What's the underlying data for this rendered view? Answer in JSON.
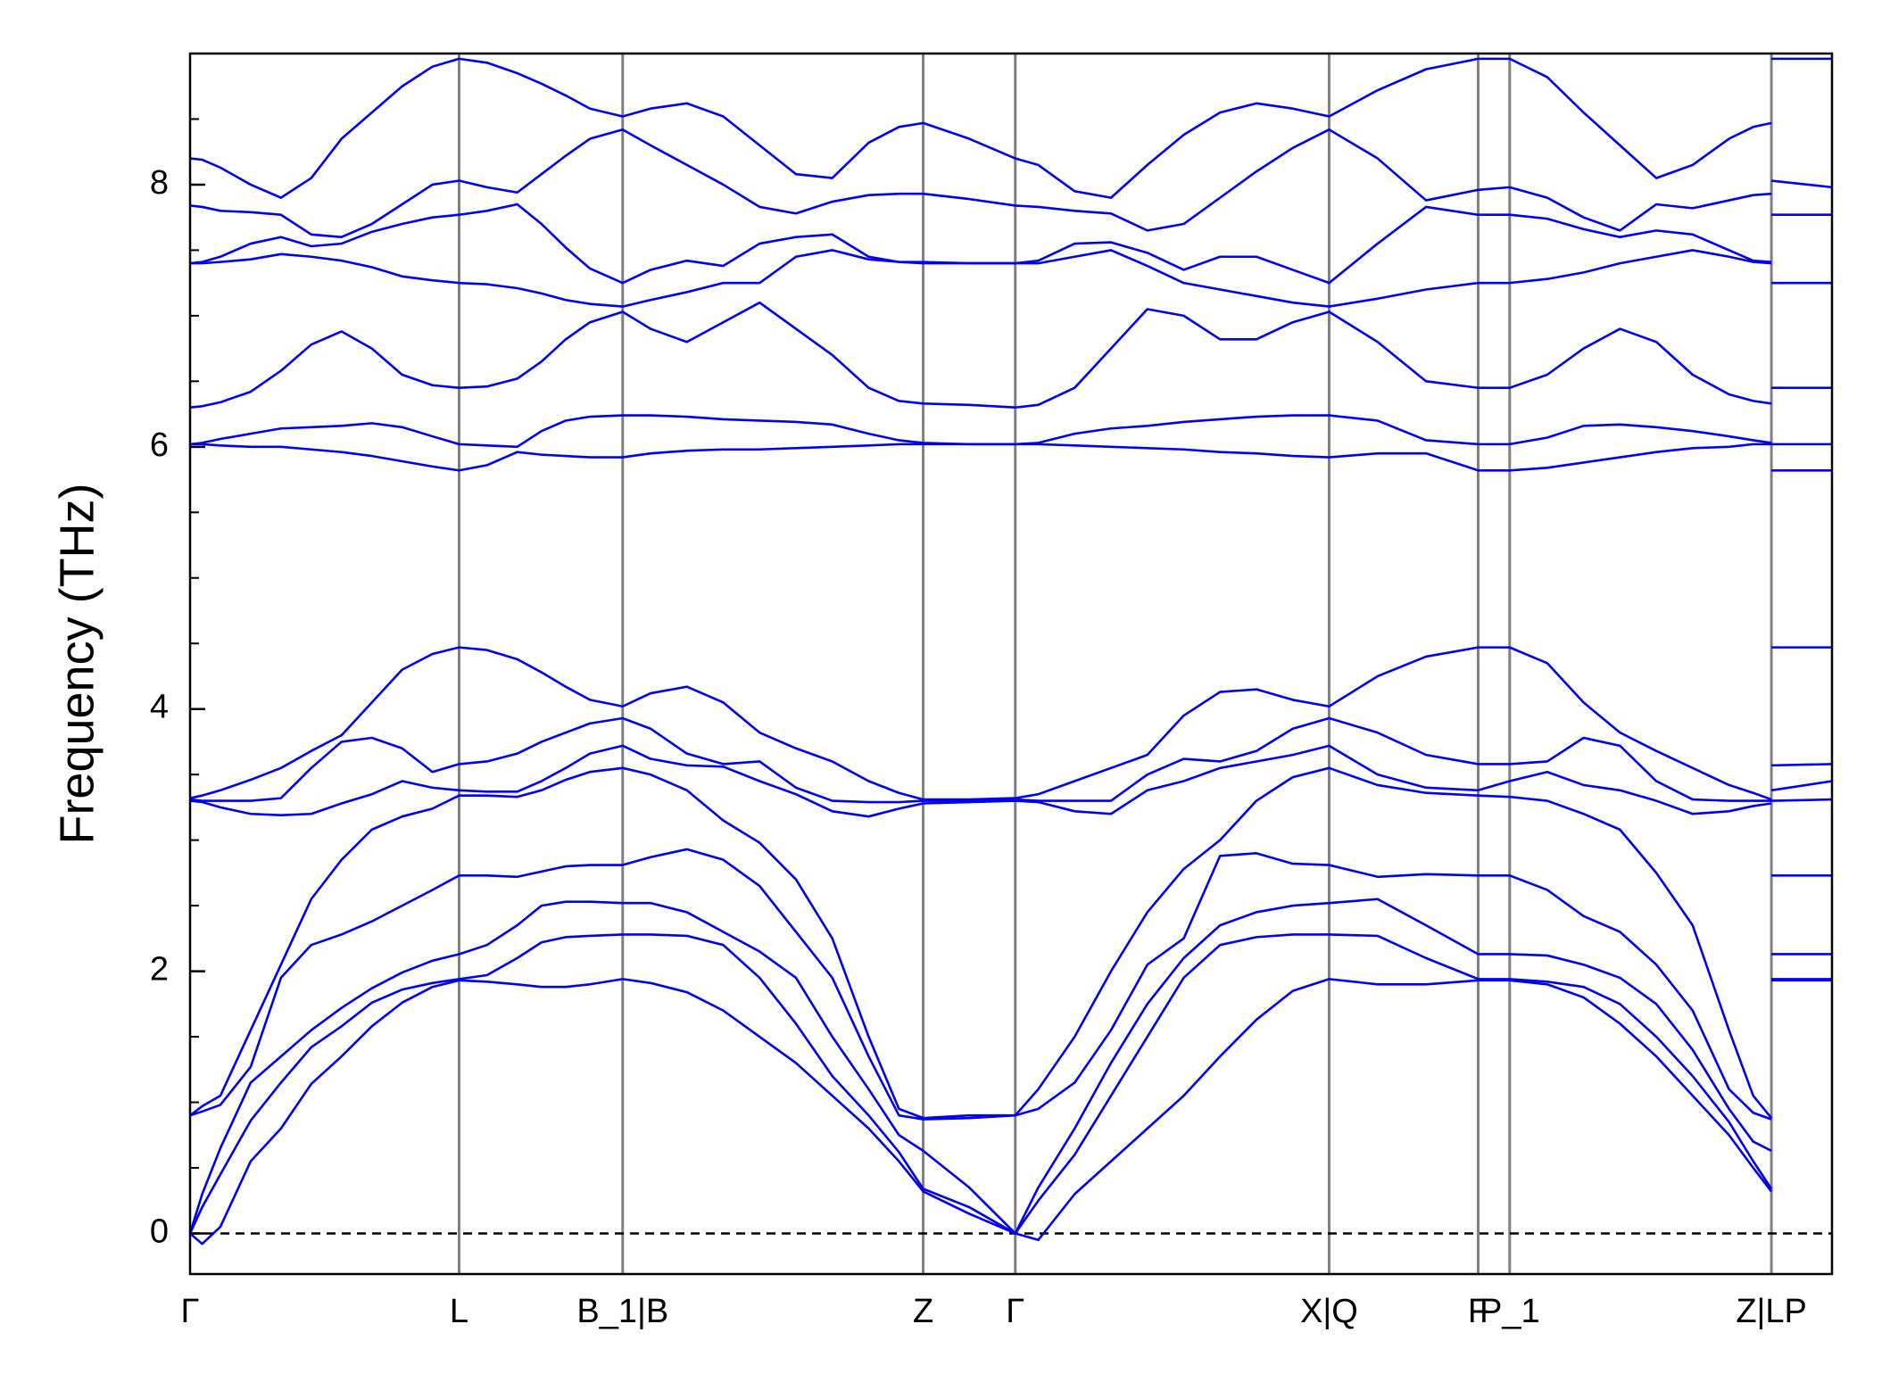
{
  "chart_data": {
    "type": "line",
    "y_label": "Frequency (THz)",
    "xlim": [
      0,
      1355
    ],
    "xticks": [
      {
        "value": 0,
        "label": "Γ"
      },
      {
        "value": 222,
        "label": "L"
      },
      {
        "value": 357,
        "label": "B_1|B"
      },
      {
        "value": 605,
        "label": "Z"
      },
      {
        "value": 681,
        "label": "Γ"
      },
      {
        "value": 940,
        "label": "X|Q"
      },
      {
        "value": 1063,
        "label": "F"
      },
      {
        "value": 1089,
        "label": "P_1"
      },
      {
        "value": 1305,
        "label": "Z|LP"
      }
    ],
    "xgrid": true,
    "xgrid_color": "#808080",
    "ylim": [
      -0.31,
      9.0
    ],
    "yticks": [
      0,
      2,
      4,
      6,
      8
    ],
    "minor_yticks": [
      0.5,
      1,
      1.5,
      2.5,
      3,
      3.5,
      4.5,
      5,
      5.5,
      6.5,
      7,
      7.5,
      8.5
    ],
    "reference_line": {
      "y": 0,
      "style": "dashed",
      "color": "#000000"
    },
    "x": [
      0,
      10,
      25,
      50,
      75,
      100,
      125,
      150,
      175,
      200,
      222,
      245,
      270,
      290,
      310,
      330,
      357,
      380,
      410,
      440,
      470,
      500,
      530,
      560,
      585,
      605,
      643,
      681,
      700,
      730,
      760,
      790,
      820,
      850,
      880,
      910,
      940,
      980,
      1020,
      1063,
      1089,
      1120,
      1150,
      1180,
      1210,
      1240,
      1270,
      1290,
      1305,
      1305,
      1305,
      1355
    ],
    "series": [
      {
        "color": "#0000ee",
        "values": [
          0,
          -0.08,
          0.05,
          0.55,
          0.8,
          1.14,
          1.35,
          1.58,
          1.76,
          1.88,
          1.93,
          1.92,
          1.9,
          1.88,
          1.88,
          1.9,
          1.94,
          1.91,
          1.84,
          1.7,
          1.5,
          1.3,
          1.05,
          0.8,
          0.55,
          0.32,
          0.15,
          0,
          -0.05,
          0.3,
          0.55,
          0.8,
          1.05,
          1.35,
          1.63,
          1.85,
          1.94,
          1.9,
          1.9,
          1.93,
          1.93,
          1.9,
          1.8,
          1.6,
          1.35,
          1.05,
          0.75,
          0.5,
          0.32,
          null,
          1.93,
          1.93
        ]
      },
      {
        "color": "#0000ee",
        "values": [
          0,
          0.2,
          0.45,
          0.86,
          1.15,
          1.42,
          1.58,
          1.76,
          1.86,
          1.91,
          1.94,
          1.97,
          2.1,
          2.22,
          2.26,
          2.27,
          2.28,
          2.28,
          2.27,
          2.2,
          1.95,
          1.6,
          1.2,
          0.9,
          0.62,
          0.34,
          0.2,
          0,
          0.25,
          0.6,
          1.05,
          1.5,
          1.95,
          2.2,
          2.26,
          2.28,
          2.28,
          2.27,
          2.1,
          1.94,
          1.94,
          1.92,
          1.88,
          1.75,
          1.5,
          1.2,
          0.85,
          0.55,
          0.34,
          null,
          1.94,
          1.94
        ]
      },
      {
        "color": "#0000ee",
        "values": [
          0,
          0.3,
          0.65,
          1.15,
          1.35,
          1.55,
          1.72,
          1.87,
          1.99,
          2.08,
          2.13,
          2.2,
          2.35,
          2.5,
          2.53,
          2.53,
          2.52,
          2.52,
          2.45,
          2.3,
          2.15,
          1.95,
          1.5,
          1.1,
          0.75,
          0.63,
          0.35,
          0,
          0.35,
          0.8,
          1.3,
          1.75,
          2.1,
          2.35,
          2.45,
          2.5,
          2.52,
          2.55,
          2.35,
          2.13,
          2.13,
          2.12,
          2.05,
          1.95,
          1.75,
          1.4,
          0.95,
          0.7,
          0.63,
          null,
          2.13,
          2.13
        ]
      },
      {
        "color": "#0000ee",
        "values": [
          0.9,
          0.93,
          0.98,
          1.27,
          1.95,
          2.2,
          2.28,
          2.38,
          2.5,
          2.62,
          2.73,
          2.73,
          2.72,
          2.76,
          2.8,
          2.81,
          2.81,
          2.87,
          2.93,
          2.85,
          2.65,
          2.3,
          1.95,
          1.35,
          0.9,
          0.87,
          0.88,
          0.9,
          0.95,
          1.15,
          1.55,
          2.05,
          2.25,
          2.88,
          2.9,
          2.82,
          2.81,
          2.72,
          2.74,
          2.73,
          2.73,
          2.62,
          2.42,
          2.3,
          2.05,
          1.7,
          1.1,
          0.92,
          0.87,
          null,
          2.73,
          2.73
        ]
      },
      {
        "color": "#0000ee",
        "values": [
          0.9,
          0.97,
          1.05,
          1.55,
          2.05,
          2.55,
          2.85,
          3.08,
          3.18,
          3.24,
          3.34,
          3.34,
          3.33,
          3.38,
          3.46,
          3.52,
          3.55,
          3.5,
          3.38,
          3.15,
          2.98,
          2.7,
          2.25,
          1.5,
          0.95,
          0.88,
          0.9,
          0.9,
          1.1,
          1.5,
          2.0,
          2.45,
          2.78,
          3.0,
          3.3,
          3.48,
          3.55,
          3.42,
          3.36,
          3.34,
          3.33,
          3.3,
          3.2,
          3.08,
          2.75,
          2.35,
          1.55,
          1.05,
          0.88,
          null,
          3.3,
          3.31
        ]
      },
      {
        "color": "#0000ee",
        "values": [
          3.3,
          3.29,
          3.25,
          3.2,
          3.19,
          3.2,
          3.28,
          3.35,
          3.45,
          3.4,
          3.38,
          3.37,
          3.37,
          3.45,
          3.55,
          3.66,
          3.72,
          3.62,
          3.57,
          3.56,
          3.45,
          3.35,
          3.22,
          3.18,
          3.24,
          3.28,
          3.29,
          3.3,
          3.29,
          3.22,
          3.2,
          3.38,
          3.45,
          3.55,
          3.6,
          3.65,
          3.72,
          3.5,
          3.4,
          3.38,
          3.45,
          3.52,
          3.42,
          3.38,
          3.3,
          3.2,
          3.22,
          3.26,
          3.28,
          null,
          3.38,
          3.45
        ]
      },
      {
        "color": "#0000ee",
        "values": [
          3.31,
          3.3,
          3.3,
          3.3,
          3.32,
          3.55,
          3.75,
          3.78,
          3.7,
          3.52,
          3.58,
          3.6,
          3.66,
          3.75,
          3.82,
          3.89,
          3.93,
          3.85,
          3.66,
          3.58,
          3.6,
          3.4,
          3.3,
          3.29,
          3.29,
          3.3,
          3.3,
          3.31,
          3.3,
          3.3,
          3.3,
          3.5,
          3.62,
          3.6,
          3.68,
          3.85,
          3.93,
          3.82,
          3.65,
          3.58,
          3.58,
          3.6,
          3.78,
          3.72,
          3.45,
          3.31,
          3.3,
          3.3,
          3.3,
          null,
          3.57,
          3.58
        ]
      },
      {
        "color": "#0000ee",
        "values": [
          3.32,
          3.34,
          3.38,
          3.46,
          3.55,
          3.68,
          3.8,
          4.05,
          4.3,
          4.42,
          4.47,
          4.45,
          4.38,
          4.28,
          4.17,
          4.07,
          4.02,
          4.12,
          4.17,
          4.05,
          3.82,
          3.7,
          3.6,
          3.45,
          3.36,
          3.31,
          3.31,
          3.32,
          3.35,
          3.45,
          3.55,
          3.65,
          3.95,
          4.13,
          4.15,
          4.07,
          4.02,
          4.25,
          4.4,
          4.47,
          4.47,
          4.35,
          4.05,
          3.82,
          3.68,
          3.55,
          3.42,
          3.36,
          3.31,
          null,
          4.47,
          4.47
        ]
      },
      {
        "color": "#0000ee",
        "values": [
          6.02,
          6.02,
          6.01,
          6.0,
          6.0,
          5.98,
          5.96,
          5.93,
          5.89,
          5.85,
          5.82,
          5.86,
          5.96,
          5.94,
          5.93,
          5.92,
          5.92,
          5.95,
          5.97,
          5.98,
          5.98,
          5.99,
          6.0,
          6.01,
          6.02,
          6.02,
          6.02,
          6.02,
          6.02,
          6.01,
          6.0,
          5.99,
          5.98,
          5.96,
          5.95,
          5.93,
          5.92,
          5.95,
          5.95,
          5.82,
          5.82,
          5.84,
          5.88,
          5.92,
          5.96,
          5.99,
          6.0,
          6.02,
          6.02,
          null,
          5.82,
          5.82
        ]
      },
      {
        "color": "#0000ee",
        "values": [
          6.02,
          6.03,
          6.06,
          6.1,
          6.14,
          6.15,
          6.16,
          6.18,
          6.15,
          6.08,
          6.02,
          6.01,
          6.0,
          6.12,
          6.2,
          6.23,
          6.24,
          6.24,
          6.23,
          6.21,
          6.2,
          6.19,
          6.17,
          6.1,
          6.05,
          6.03,
          6.02,
          6.02,
          6.03,
          6.1,
          6.14,
          6.16,
          6.19,
          6.21,
          6.23,
          6.24,
          6.24,
          6.2,
          6.05,
          6.02,
          6.02,
          6.07,
          6.16,
          6.17,
          6.15,
          6.12,
          6.08,
          6.05,
          6.03,
          null,
          6.02,
          6.02
        ]
      },
      {
        "color": "#0000ee",
        "values": [
          6.3,
          6.31,
          6.34,
          6.42,
          6.58,
          6.78,
          6.88,
          6.75,
          6.55,
          6.47,
          6.45,
          6.46,
          6.52,
          6.65,
          6.82,
          6.95,
          7.03,
          6.9,
          6.8,
          6.95,
          7.1,
          6.9,
          6.7,
          6.45,
          6.35,
          6.33,
          6.32,
          6.3,
          6.32,
          6.45,
          6.75,
          7.05,
          7.0,
          6.82,
          6.82,
          6.95,
          7.03,
          6.8,
          6.5,
          6.45,
          6.45,
          6.55,
          6.75,
          6.9,
          6.8,
          6.55,
          6.4,
          6.35,
          6.33,
          null,
          6.45,
          6.45
        ]
      },
      {
        "color": "#0000ee",
        "values": [
          7.4,
          7.4,
          7.41,
          7.43,
          7.47,
          7.45,
          7.42,
          7.37,
          7.3,
          7.27,
          7.25,
          7.24,
          7.21,
          7.17,
          7.12,
          7.09,
          7.07,
          7.12,
          7.18,
          7.25,
          7.25,
          7.45,
          7.5,
          7.43,
          7.41,
          7.4,
          7.4,
          7.4,
          7.4,
          7.45,
          7.5,
          7.38,
          7.25,
          7.2,
          7.15,
          7.1,
          7.07,
          7.13,
          7.2,
          7.25,
          7.25,
          7.28,
          7.33,
          7.4,
          7.45,
          7.5,
          7.45,
          7.41,
          7.4,
          null,
          7.25,
          7.25
        ]
      },
      {
        "color": "#0000ee",
        "values": [
          7.4,
          7.41,
          7.45,
          7.55,
          7.6,
          7.53,
          7.55,
          7.64,
          7.7,
          7.75,
          7.77,
          7.8,
          7.85,
          7.7,
          7.52,
          7.36,
          7.25,
          7.35,
          7.42,
          7.38,
          7.55,
          7.6,
          7.62,
          7.45,
          7.41,
          7.41,
          7.4,
          7.4,
          7.42,
          7.55,
          7.56,
          7.48,
          7.35,
          7.45,
          7.45,
          7.35,
          7.25,
          7.55,
          7.83,
          7.77,
          7.77,
          7.74,
          7.66,
          7.6,
          7.65,
          7.62,
          7.5,
          7.42,
          7.41,
          null,
          7.77,
          7.77
        ]
      },
      {
        "color": "#0000ee",
        "values": [
          7.84,
          7.83,
          7.8,
          7.79,
          7.77,
          7.62,
          7.6,
          7.7,
          7.85,
          8.0,
          8.03,
          7.98,
          7.94,
          8.08,
          8.22,
          8.35,
          8.42,
          8.3,
          8.15,
          8.0,
          7.83,
          7.78,
          7.87,
          7.92,
          7.93,
          7.93,
          7.89,
          7.84,
          7.83,
          7.8,
          7.78,
          7.65,
          7.7,
          7.9,
          8.1,
          8.28,
          8.42,
          8.2,
          7.88,
          7.96,
          7.98,
          7.9,
          7.75,
          7.65,
          7.85,
          7.82,
          7.88,
          7.92,
          7.93,
          null,
          8.03,
          7.98
        ]
      },
      {
        "color": "#0000ee",
        "values": [
          8.2,
          8.19,
          8.13,
          8.0,
          7.9,
          8.05,
          8.35,
          8.55,
          8.75,
          8.9,
          8.96,
          8.93,
          8.85,
          8.77,
          8.68,
          8.58,
          8.52,
          8.58,
          8.62,
          8.52,
          8.3,
          8.08,
          8.05,
          8.32,
          8.44,
          8.47,
          8.35,
          8.2,
          8.15,
          7.95,
          7.9,
          8.15,
          8.38,
          8.55,
          8.62,
          8.58,
          8.52,
          8.72,
          8.88,
          8.96,
          8.96,
          8.82,
          8.55,
          8.3,
          8.05,
          8.15,
          8.35,
          8.44,
          8.47,
          null,
          8.96,
          8.96
        ]
      }
    ]
  }
}
